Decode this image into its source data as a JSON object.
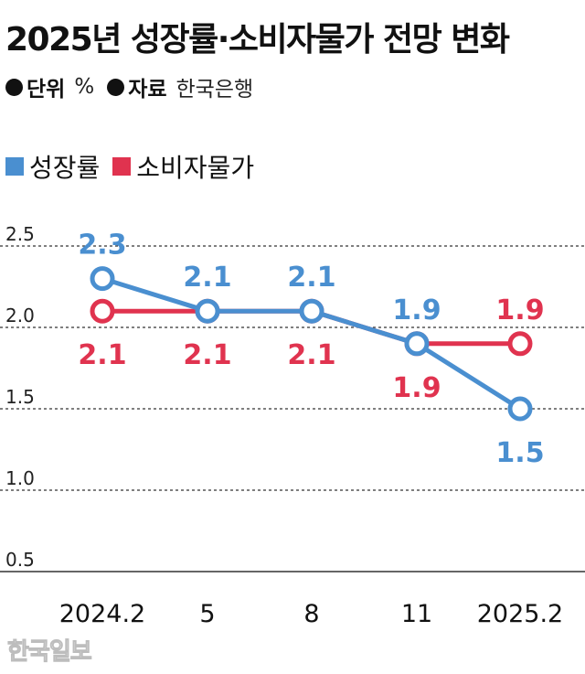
{
  "header": {
    "title": "2025년 성장률·소비자물가 전망 변화",
    "unit_key": "단위",
    "unit_value": "%",
    "source_key": "자료",
    "source_value": "한국은행"
  },
  "watermark": "한국일보",
  "colors": {
    "growth": "#4a8fd0",
    "cpi": "#e0334f",
    "axis_text": "#222222",
    "grid": "#333333"
  },
  "chart_data": {
    "type": "line",
    "categories": [
      "2024.2",
      "5",
      "8",
      "11",
      "2025.2"
    ],
    "series": [
      {
        "name": "성장률",
        "values": [
          2.3,
          2.1,
          2.1,
          1.9,
          1.5
        ],
        "labels": [
          "2.3",
          "2.1",
          "2.1",
          "1.9",
          "1.5"
        ]
      },
      {
        "name": "소비자물가",
        "values": [
          2.1,
          2.1,
          2.1,
          1.9,
          1.9
        ],
        "labels": [
          "2.1",
          "2.1",
          "2.1",
          "1.9",
          "1.9"
        ]
      }
    ],
    "yticks": [
      "2.5",
      "2.0",
      "1.5",
      "1.0",
      "0.5"
    ],
    "ylim": [
      0.5,
      2.5
    ],
    "grid": true,
    "legend": "top-left"
  }
}
